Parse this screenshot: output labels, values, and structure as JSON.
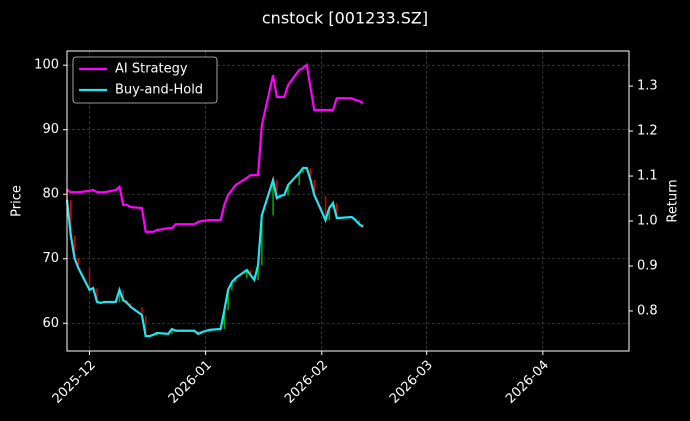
{
  "chart_data": {
    "type": "candlestick",
    "title": "cnstock [001233.SZ]",
    "y_label": "Price",
    "y2_label": "Return",
    "x": [
      -6,
      -5,
      -4,
      -3,
      0,
      1,
      2,
      3,
      4,
      7,
      8,
      9,
      10,
      11,
      14,
      15,
      16,
      17,
      18,
      21,
      22,
      23,
      24,
      25,
      28,
      29,
      30,
      32,
      35,
      36,
      37,
      38,
      39,
      42,
      43,
      44,
      45,
      46,
      49,
      50,
      51,
      52,
      53,
      56,
      57,
      58,
      59,
      60,
      63,
      64,
      65,
      66,
      67,
      70,
      71,
      72,
      73
    ],
    "xlim": [
      -6,
      144
    ],
    "xticks": [
      {
        "value": 0,
        "label": "2025-12"
      },
      {
        "value": 31,
        "label": "2026-01"
      },
      {
        "value": 62,
        "label": "2026-02"
      },
      {
        "value": 90,
        "label": "2026-03"
      },
      {
        "value": 121,
        "label": "2026-04"
      }
    ],
    "open": [
      81.0,
      79.1,
      73.6,
      70.1,
      68.5,
      65.1,
      65.4,
      63.3,
      63.1,
      63.3,
      63.3,
      65.1,
      63.6,
      63.1,
      62.5,
      61.2,
      58.0,
      58.0,
      58.1,
      58.4,
      58.3,
      59.1,
      58.8,
      58.8,
      58.8,
      58.8,
      58.3,
      58.6,
      58.9,
      59.1,
      62.0,
      65.1,
      66.4,
      67.0,
      68.2,
      67.4,
      66.7,
      69.0,
      76.7,
      82.2,
      79.4,
      79.7,
      79.8,
      81.4,
      83.3,
      84.0,
      84.0,
      82.2,
      79.8,
      76.0,
      77.8,
      78.6,
      76.3,
      76.3,
      76.4,
      76.0,
      75.4
    ],
    "close": [
      79.1,
      73.6,
      70.1,
      68.5,
      65.1,
      65.4,
      63.3,
      63.1,
      63.3,
      63.3,
      65.1,
      63.6,
      63.1,
      62.5,
      61.2,
      58.0,
      58.0,
      58.1,
      58.4,
      58.3,
      59.1,
      58.8,
      58.8,
      58.8,
      58.8,
      58.3,
      58.6,
      58.9,
      59.1,
      62.0,
      65.1,
      66.4,
      67.0,
      68.2,
      67.4,
      66.7,
      69.0,
      76.7,
      82.2,
      79.4,
      79.7,
      79.8,
      81.4,
      83.3,
      84.0,
      84.0,
      82.2,
      79.8,
      76.0,
      77.8,
      78.6,
      76.3,
      76.3,
      76.4,
      76.0,
      75.4,
      74.9
    ],
    "up_color": "#00b000",
    "down_color": "#e00000",
    "ylim": [
      55.7,
      102.2
    ],
    "yticks": [
      60,
      70,
      80,
      90,
      100
    ],
    "y2lim": [
      0.711,
      1.378
    ],
    "y2ticks": [
      0.8,
      0.9,
      {
        "value": 1,
        "label": "1.0"
      },
      1.1,
      1.2,
      1.3
    ],
    "grid": true,
    "legend": "upper left",
    "series": [
      {
        "name": "AI Strategy",
        "color": "#ff00ff",
        "axis": "y2",
        "values": [
          1.069,
          1.064,
          1.064,
          1.064,
          1.067,
          1.069,
          1.064,
          1.064,
          1.064,
          1.069,
          1.076,
          1.036,
          1.036,
          1.031,
          1.029,
          0.976,
          0.976,
          0.976,
          0.98,
          0.984,
          0.984,
          0.993,
          0.993,
          0.993,
          0.993,
          0.998,
          1.0,
          1.002,
          1.002,
          1.036,
          1.058,
          1.069,
          1.08,
          1.096,
          1.102,
          1.102,
          1.102,
          1.213,
          1.324,
          1.276,
          1.276,
          1.276,
          1.302,
          1.336,
          1.34,
          1.347,
          1.296,
          1.247,
          1.247,
          1.247,
          1.247,
          1.273,
          1.273,
          1.273,
          1.269,
          1.267,
          1.262
        ]
      },
      {
        "name": "Buy-and-Hold",
        "color": "#22e5f0",
        "axis": "y2",
        "values": [
          1.047,
          0.969,
          0.918,
          0.896,
          0.847,
          0.851,
          0.82,
          0.818,
          0.82,
          0.82,
          0.847,
          0.824,
          0.818,
          0.809,
          0.791,
          0.744,
          0.744,
          0.747,
          0.751,
          0.749,
          0.76,
          0.756,
          0.756,
          0.756,
          0.756,
          0.749,
          0.753,
          0.758,
          0.76,
          0.802,
          0.847,
          0.864,
          0.873,
          0.891,
          0.88,
          0.869,
          0.902,
          1.013,
          1.091,
          1.051,
          1.056,
          1.058,
          1.08,
          1.107,
          1.118,
          1.118,
          1.091,
          1.058,
          1.002,
          1.029,
          1.04,
          1.007,
          1.007,
          1.009,
          1.002,
          0.993,
          0.987
        ]
      }
    ]
  }
}
